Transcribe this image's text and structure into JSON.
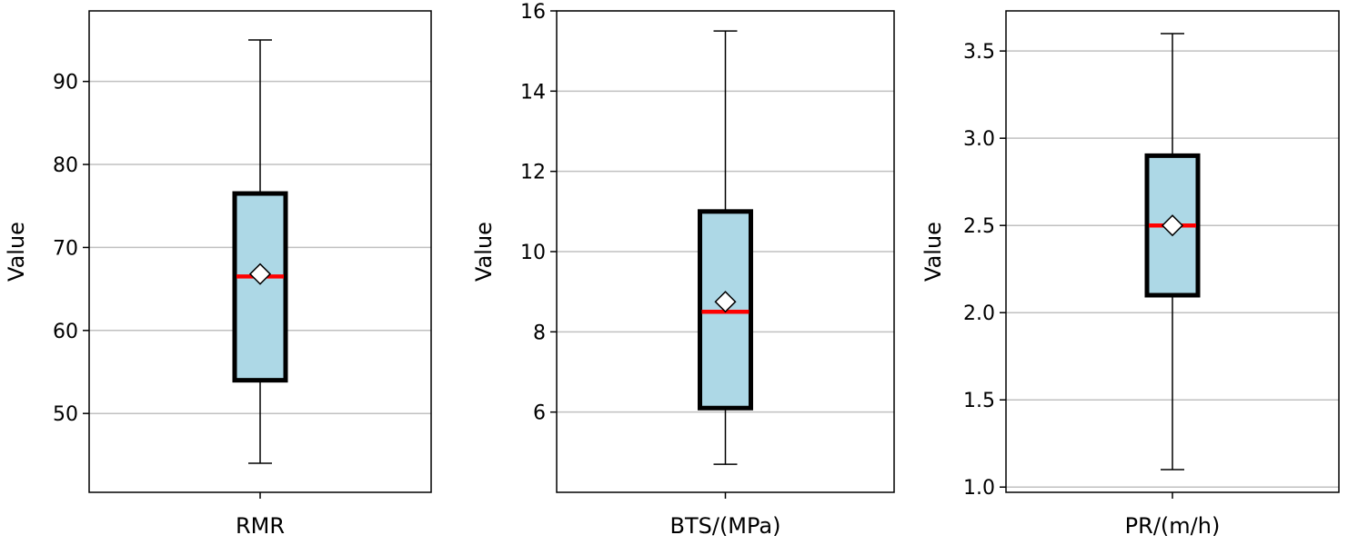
{
  "chart_data": [
    {
      "type": "box",
      "xlabel": "RMR",
      "ylabel": "Value",
      "ylim": [
        40.5,
        98.5
      ],
      "yticks": [
        50,
        60,
        70,
        80,
        90
      ],
      "grid": "horizontal",
      "box": {
        "whisker_low": 44,
        "q1": 54,
        "median": 66.5,
        "q3": 76.5,
        "whisker_high": 95,
        "mean": 66.8
      }
    },
    {
      "type": "box",
      "xlabel": "BTS/(MPa)",
      "ylabel": "Value",
      "ylim": [
        4.0,
        16.0
      ],
      "yticks": [
        6,
        8,
        10,
        12,
        14,
        16
      ],
      "grid": "horizontal",
      "box": {
        "whisker_low": 4.7,
        "q1": 6.1,
        "median": 8.5,
        "q3": 11.0,
        "whisker_high": 15.5,
        "mean": 8.75
      }
    },
    {
      "type": "box",
      "xlabel": "PR/(m/h)",
      "ylabel": "Value",
      "ylim": [
        0.97,
        3.73
      ],
      "yticks": [
        "1.0",
        "1.5",
        "2.0",
        "2.5",
        "3.0",
        "3.5"
      ],
      "grid": "horizontal",
      "box": {
        "whisker_low": 1.1,
        "q1": 2.1,
        "median": 2.5,
        "q3": 2.9,
        "whisker_high": 3.6,
        "mean": 2.5
      }
    }
  ],
  "colors": {
    "box_fill": "#add8e6",
    "box_edge": "#000000",
    "median": "#ff0000",
    "mean_marker_fill": "#ffffff",
    "whisker": "#000000",
    "grid": "#c0c0c0"
  }
}
